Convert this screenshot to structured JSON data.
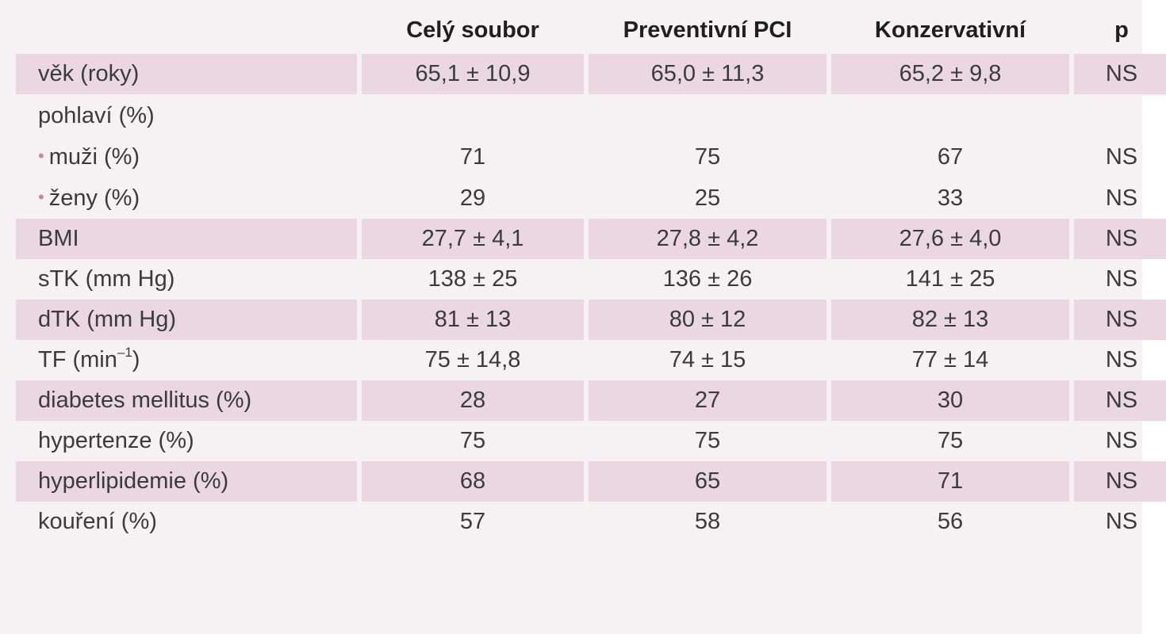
{
  "table": {
    "headers": [
      "",
      "Celý soubor",
      "Preventivní PCI",
      "Konzervativní",
      "p"
    ],
    "rows": [
      {
        "label": "věk (roky)",
        "cells": [
          "65,1 ± 10,9",
          "65,0 ± 11,3",
          "65,2 ± 9,8",
          "NS"
        ],
        "shaded": true
      },
      {
        "label": "pohlaví (%)",
        "cells": [
          "",
          "",
          "",
          ""
        ],
        "shaded": false
      },
      {
        "label": "muži (%)",
        "bullet": "•",
        "cells": [
          "71",
          "75",
          "67",
          "NS"
        ],
        "shaded": false
      },
      {
        "label": "ženy (%)",
        "bullet": "•",
        "cells": [
          "29",
          "25",
          "33",
          "NS"
        ],
        "shaded": false
      },
      {
        "label": "BMI",
        "cells": [
          "27,7 ± 4,1",
          "27,8 ± 4,2",
          "27,6 ± 4,0",
          "NS"
        ],
        "shaded": true
      },
      {
        "label": "sTK (mm Hg)",
        "cells": [
          "138 ± 25",
          "136 ± 26",
          "141 ± 25",
          "NS"
        ],
        "shaded": false
      },
      {
        "label": "dTK (mm Hg)",
        "cells": [
          "81 ± 13",
          "80 ± 12",
          "82 ± 13",
          "NS"
        ],
        "shaded": true
      },
      {
        "label": "TF (min",
        "label_sup": "–1",
        "label_suffix": ")",
        "cells": [
          "75 ± 14,8",
          "74 ± 15",
          "77 ± 14",
          "NS"
        ],
        "shaded": false
      },
      {
        "label": "diabetes mellitus (%)",
        "cells": [
          "28",
          "27",
          "30",
          "NS"
        ],
        "shaded": true
      },
      {
        "label": "hypertenze (%)",
        "cells": [
          "75",
          "75",
          "75",
          "NS"
        ],
        "shaded": false
      },
      {
        "label": "hyperlipidemie (%)",
        "cells": [
          "68",
          "65",
          "71",
          "NS"
        ],
        "shaded": true
      },
      {
        "label": "kouření (%)",
        "cells": [
          "57",
          "58",
          "56",
          "NS"
        ],
        "shaded": false
      }
    ]
  },
  "colors": {
    "panel_background": "#f6f1f3",
    "row_shade": "#ead7e0",
    "bullet": "#c48aa4",
    "text": "#3b3b3b"
  }
}
